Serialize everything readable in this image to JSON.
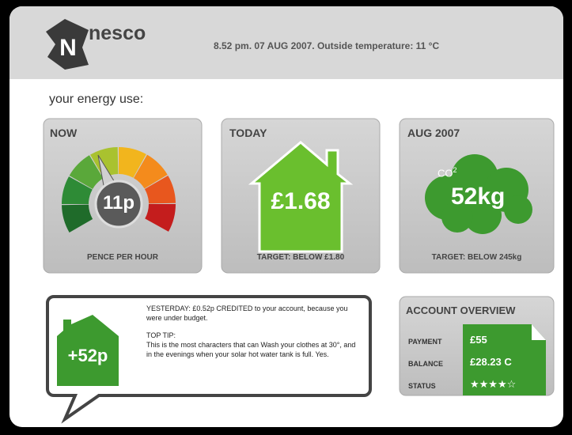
{
  "header": {
    "logo": "nesco",
    "info": "8.52 pm. 07 AUG 2007. Outside temperature: 11 °C"
  },
  "section_title": "your energy use:",
  "cards": [
    {
      "title": "NOW",
      "value": "11p",
      "caption": "PENCE PER HOUR"
    },
    {
      "title": "TODAY",
      "value": "£1.68",
      "caption": "TARGET: BELOW £1.80"
    },
    {
      "title": "AUG 2007",
      "unit": "CO",
      "unit_sup": "2",
      "value": "52kg",
      "caption": "TARGET: BELOW 245kg"
    }
  ],
  "message": {
    "value": "+52p",
    "text": "YESTERDAY: £0.52p CREDITED to your account, because you were under budget.",
    "tip_title": "TOP TIP:",
    "tip_text": "This is the most characters that can Wash your clothes at 30°, and in the evenings when your solar hot water tank is full. Yes."
  },
  "account": {
    "title": "ACCOUNT OVERVIEW",
    "rows": [
      {
        "label": "PAYMENT",
        "value": "£55"
      },
      {
        "label": "BALANCE",
        "value": "£28.23 C"
      },
      {
        "label": "STATUS",
        "value": "★★★★☆"
      }
    ]
  }
}
